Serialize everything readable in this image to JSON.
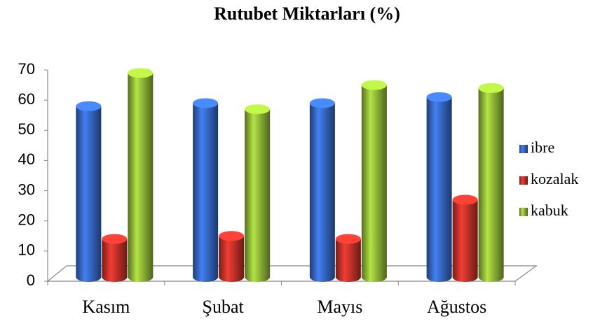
{
  "chart_data": {
    "type": "bar3d",
    "title": "Rutubet Miktarları (%)",
    "categories": [
      "Kasım",
      "Şubat",
      "Mayıs",
      "Ağustos"
    ],
    "series": [
      {
        "name": "ibre",
        "color": "#3a6fd3",
        "values": [
          58,
          59,
          59,
          61
        ]
      },
      {
        "name": "kozalak",
        "color": "#d3352c",
        "values": [
          14,
          15,
          14,
          27
        ]
      },
      {
        "name": "kabuk",
        "color": "#9cc63b",
        "values": [
          69,
          57,
          65,
          64
        ]
      }
    ],
    "ylim": [
      0,
      70
    ],
    "yticks": [
      0,
      10,
      20,
      30,
      40,
      50,
      60,
      70
    ],
    "grid": false,
    "legend": "right"
  }
}
